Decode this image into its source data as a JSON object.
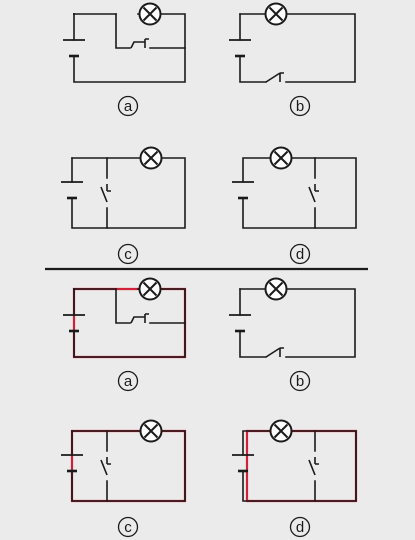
{
  "colors": {
    "background": "#ebebeb",
    "wire": "#1a1a1a",
    "highlight": "#d0203a"
  },
  "divider": {
    "visible": true
  },
  "sections": [
    {
      "name": "circuits-original",
      "circuits": [
        {
          "id": "a",
          "label": "a",
          "topology": "switch-parallel-lamp-branch",
          "switch_state": "closed",
          "highlight": "none"
        },
        {
          "id": "b",
          "label": "b",
          "topology": "series-switch",
          "switch_state": "open",
          "highlight": "none"
        },
        {
          "id": "c",
          "label": "c",
          "topology": "switch-parallel-battery",
          "switch_state": "open",
          "highlight": "none"
        },
        {
          "id": "d",
          "label": "d",
          "topology": "switch-parallel-lamp",
          "switch_state": "open",
          "highlight": "none"
        }
      ]
    },
    {
      "name": "circuits-highlighted",
      "circuits": [
        {
          "id": "a",
          "label": "a",
          "topology": "switch-parallel-lamp-branch",
          "switch_state": "closed",
          "highlight": "outer-loop"
        },
        {
          "id": "b",
          "label": "b",
          "topology": "series-switch",
          "switch_state": "open",
          "highlight": "none"
        },
        {
          "id": "c",
          "label": "c",
          "topology": "switch-parallel-battery",
          "switch_state": "open",
          "highlight": "outer-loop"
        },
        {
          "id": "d",
          "label": "d",
          "topology": "switch-parallel-lamp",
          "switch_state": "open",
          "highlight": "outer-loop"
        }
      ]
    }
  ]
}
